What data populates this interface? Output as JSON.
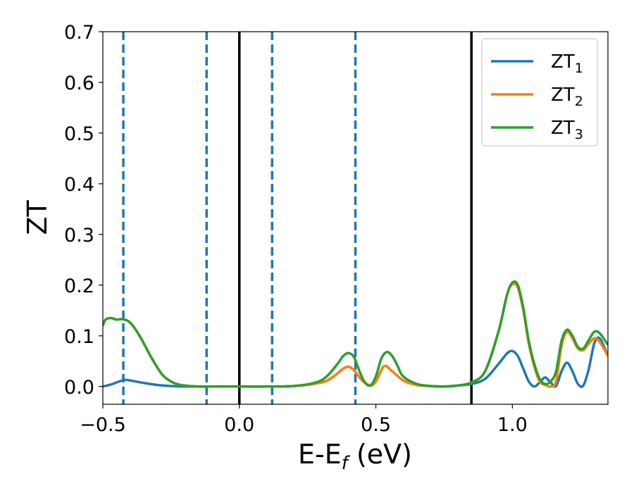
{
  "chart_data": {
    "type": "line",
    "xlabel": {
      "main": "E-E",
      "sub": "f",
      "rest": " (eV)"
    },
    "ylabel": "ZT",
    "xlim": [
      -0.5,
      1.35
    ],
    "ylim": [
      -0.035,
      0.7
    ],
    "xticks": [
      -0.5,
      0.0,
      0.5,
      1.0
    ],
    "xtick_labels": [
      "−0.5",
      "0.0",
      "0.5",
      "1.0"
    ],
    "yticks": [
      0.0,
      0.1,
      0.2,
      0.3,
      0.4,
      0.5,
      0.6,
      0.7
    ],
    "ytick_labels": [
      "0.0",
      "0.1",
      "0.2",
      "0.3",
      "0.4",
      "0.5",
      "0.6",
      "0.7"
    ],
    "grid": false,
    "legend_position": "top-right",
    "vlines_dashed": {
      "color": "#1f77b4",
      "x": [
        -0.425,
        -0.12,
        0.12,
        0.425
      ]
    },
    "vlines_solid": {
      "color": "#000000",
      "x": [
        0.0,
        0.85
      ]
    },
    "series": [
      {
        "name": "ZT",
        "sub": "1",
        "color": "#1f77b4",
        "x": [
          -0.5,
          -0.47,
          -0.44,
          -0.42,
          -0.4,
          -0.35,
          -0.3,
          -0.25,
          -0.2,
          -0.1,
          0.0,
          0.1,
          0.2,
          0.3,
          0.34,
          0.38,
          0.4,
          0.42,
          0.45,
          0.48,
          0.5,
          0.53,
          0.56,
          0.6,
          0.65,
          0.7,
          0.75,
          0.8,
          0.85,
          0.9,
          0.95,
          0.98,
          1.0,
          1.02,
          1.04,
          1.06,
          1.08,
          1.1,
          1.12,
          1.14,
          1.16,
          1.18,
          1.2,
          1.22,
          1.24,
          1.26,
          1.28,
          1.3,
          1.32,
          1.35
        ],
        "y": [
          0.0,
          0.004,
          0.01,
          0.013,
          0.012,
          0.007,
          0.003,
          0.001,
          0.0,
          0.0,
          0.0,
          0.0,
          0.001,
          0.008,
          0.018,
          0.035,
          0.039,
          0.032,
          0.012,
          0.002,
          0.01,
          0.04,
          0.03,
          0.012,
          0.003,
          0.001,
          0.0,
          0.002,
          0.005,
          0.015,
          0.045,
          0.065,
          0.07,
          0.06,
          0.035,
          0.01,
          0.0,
          0.008,
          0.018,
          0.008,
          0.001,
          0.03,
          0.047,
          0.03,
          0.005,
          0.002,
          0.035,
          0.085,
          0.095,
          0.06
        ]
      },
      {
        "name": "ZT",
        "sub": "2",
        "color": "#ff7f0e",
        "x": [
          -0.5,
          -0.49,
          -0.47,
          -0.45,
          -0.43,
          -0.41,
          -0.39,
          -0.36,
          -0.32,
          -0.28,
          -0.24,
          -0.2,
          -0.15,
          -0.1,
          0.0,
          0.1,
          0.2,
          0.3,
          0.34,
          0.38,
          0.4,
          0.42,
          0.45,
          0.48,
          0.5,
          0.53,
          0.56,
          0.6,
          0.65,
          0.7,
          0.75,
          0.8,
          0.85,
          0.9,
          0.95,
          0.98,
          1.0,
          1.02,
          1.04,
          1.06,
          1.08,
          1.1,
          1.12,
          1.14,
          1.16,
          1.18,
          1.2,
          1.22,
          1.24,
          1.26,
          1.28,
          1.3,
          1.32,
          1.35
        ],
        "y": [
          0.12,
          0.132,
          0.135,
          0.132,
          0.133,
          0.13,
          0.12,
          0.095,
          0.055,
          0.022,
          0.007,
          0.002,
          0.0,
          0.0,
          0.0,
          0.0,
          0.001,
          0.008,
          0.018,
          0.035,
          0.039,
          0.032,
          0.012,
          0.002,
          0.01,
          0.04,
          0.03,
          0.012,
          0.003,
          0.001,
          0.0,
          0.002,
          0.008,
          0.03,
          0.11,
          0.18,
          0.202,
          0.195,
          0.15,
          0.085,
          0.04,
          0.01,
          0.003,
          0.0,
          0.01,
          0.08,
          0.108,
          0.095,
          0.075,
          0.072,
          0.085,
          0.095,
          0.088,
          0.06
        ]
      },
      {
        "name": "ZT",
        "sub": "3",
        "color": "#2ca02c",
        "x": [
          -0.5,
          -0.49,
          -0.47,
          -0.45,
          -0.43,
          -0.41,
          -0.39,
          -0.36,
          -0.32,
          -0.28,
          -0.24,
          -0.2,
          -0.15,
          -0.1,
          0.0,
          0.1,
          0.2,
          0.28,
          0.32,
          0.36,
          0.38,
          0.4,
          0.42,
          0.44,
          0.46,
          0.48,
          0.5,
          0.52,
          0.54,
          0.56,
          0.58,
          0.6,
          0.65,
          0.7,
          0.75,
          0.8,
          0.85,
          0.9,
          0.95,
          0.98,
          1.0,
          1.02,
          1.04,
          1.06,
          1.08,
          1.1,
          1.12,
          1.14,
          1.16,
          1.18,
          1.2,
          1.22,
          1.24,
          1.26,
          1.28,
          1.3,
          1.32,
          1.35
        ],
        "y": [
          0.12,
          0.132,
          0.135,
          0.132,
          0.133,
          0.13,
          0.12,
          0.095,
          0.055,
          0.022,
          0.007,
          0.002,
          0.0,
          0.0,
          0.0,
          0.0,
          0.001,
          0.008,
          0.02,
          0.045,
          0.06,
          0.066,
          0.058,
          0.03,
          0.008,
          0.002,
          0.02,
          0.055,
          0.068,
          0.06,
          0.04,
          0.02,
          0.005,
          0.001,
          0.0,
          0.002,
          0.008,
          0.03,
          0.11,
          0.18,
          0.205,
          0.2,
          0.155,
          0.09,
          0.045,
          0.015,
          0.005,
          0.01,
          0.03,
          0.09,
          0.112,
          0.1,
          0.078,
          0.075,
          0.092,
          0.108,
          0.105,
          0.082
        ]
      }
    ]
  }
}
